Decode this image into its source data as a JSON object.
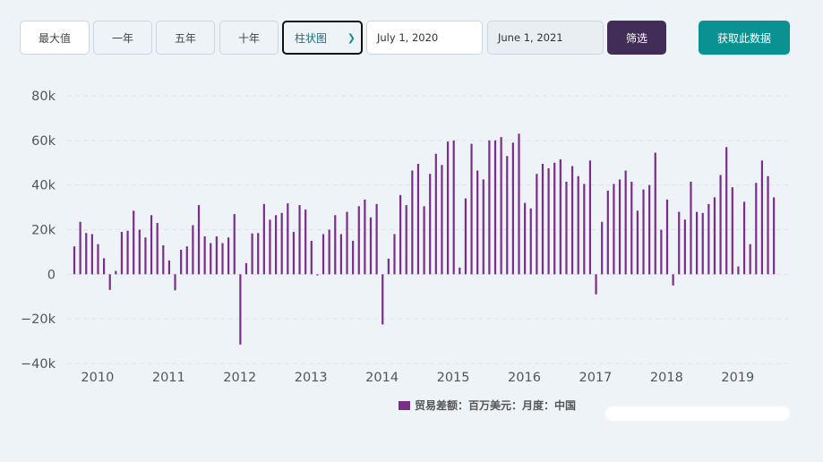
{
  "toolbar": {
    "ranges": [
      "最大值",
      "一年",
      "五年",
      "十年"
    ],
    "chart_type": "柱状图",
    "start_date": "July 1, 2020",
    "end_date": "June 1, 2021",
    "filter_label": "筛选",
    "fetch_label": "获取此数据"
  },
  "chart_data": {
    "type": "bar",
    "title": "",
    "xlabel": "",
    "ylabel": "",
    "ylim": [
      -40000,
      80000
    ],
    "yticks": [
      -40000,
      -20000,
      0,
      20000,
      40000,
      60000,
      80000
    ],
    "ytick_labels": [
      "−40k",
      "−20k",
      "0",
      "20k",
      "40k",
      "60k",
      "80k"
    ],
    "xticks": [
      "2010",
      "2011",
      "2012",
      "2013",
      "2014",
      "2015",
      "2016",
      "2017",
      "2018",
      "2019"
    ],
    "x_start": "2009-10",
    "grid": true,
    "color": "#7b2d8b",
    "series": [
      {
        "name": "贸易差额：百万美元：月度：中国",
        "values": [
          12500,
          23500,
          18500,
          18000,
          13500,
          7200,
          -7000,
          1500,
          19000,
          19500,
          28500,
          20000,
          16500,
          26500,
          23000,
          13000,
          6200,
          -7200,
          11000,
          12500,
          22000,
          31000,
          17000,
          14000,
          17000,
          14000,
          16500,
          27000,
          -31500,
          5000,
          18300,
          18500,
          31500,
          24500,
          26500,
          27500,
          31800,
          19000,
          31000,
          29000,
          15000,
          -500,
          18000,
          20000,
          26500,
          18000,
          28000,
          15000,
          30500,
          33500,
          25500,
          31500,
          -22500,
          7000,
          18000,
          35500,
          31000,
          46500,
          49500,
          30500,
          45000,
          54000,
          49000,
          59500,
          60000,
          3000,
          34000,
          58500,
          46500,
          42500,
          60000,
          60000,
          61500,
          53000,
          59000,
          63000,
          32000,
          29500,
          45000,
          49500,
          47500,
          50000,
          51500,
          41500,
          48500,
          44000,
          40500,
          51000,
          -9000,
          23500,
          37500,
          40500,
          42500,
          46500,
          41500,
          28500,
          38000,
          40000,
          54500,
          20000,
          33500,
          -5000,
          28000,
          24500,
          41500,
          28000,
          27500,
          31500,
          34500,
          44500,
          57000,
          39000,
          3500,
          32500,
          13500,
          41000,
          51000,
          44000,
          34500
        ]
      }
    ]
  }
}
